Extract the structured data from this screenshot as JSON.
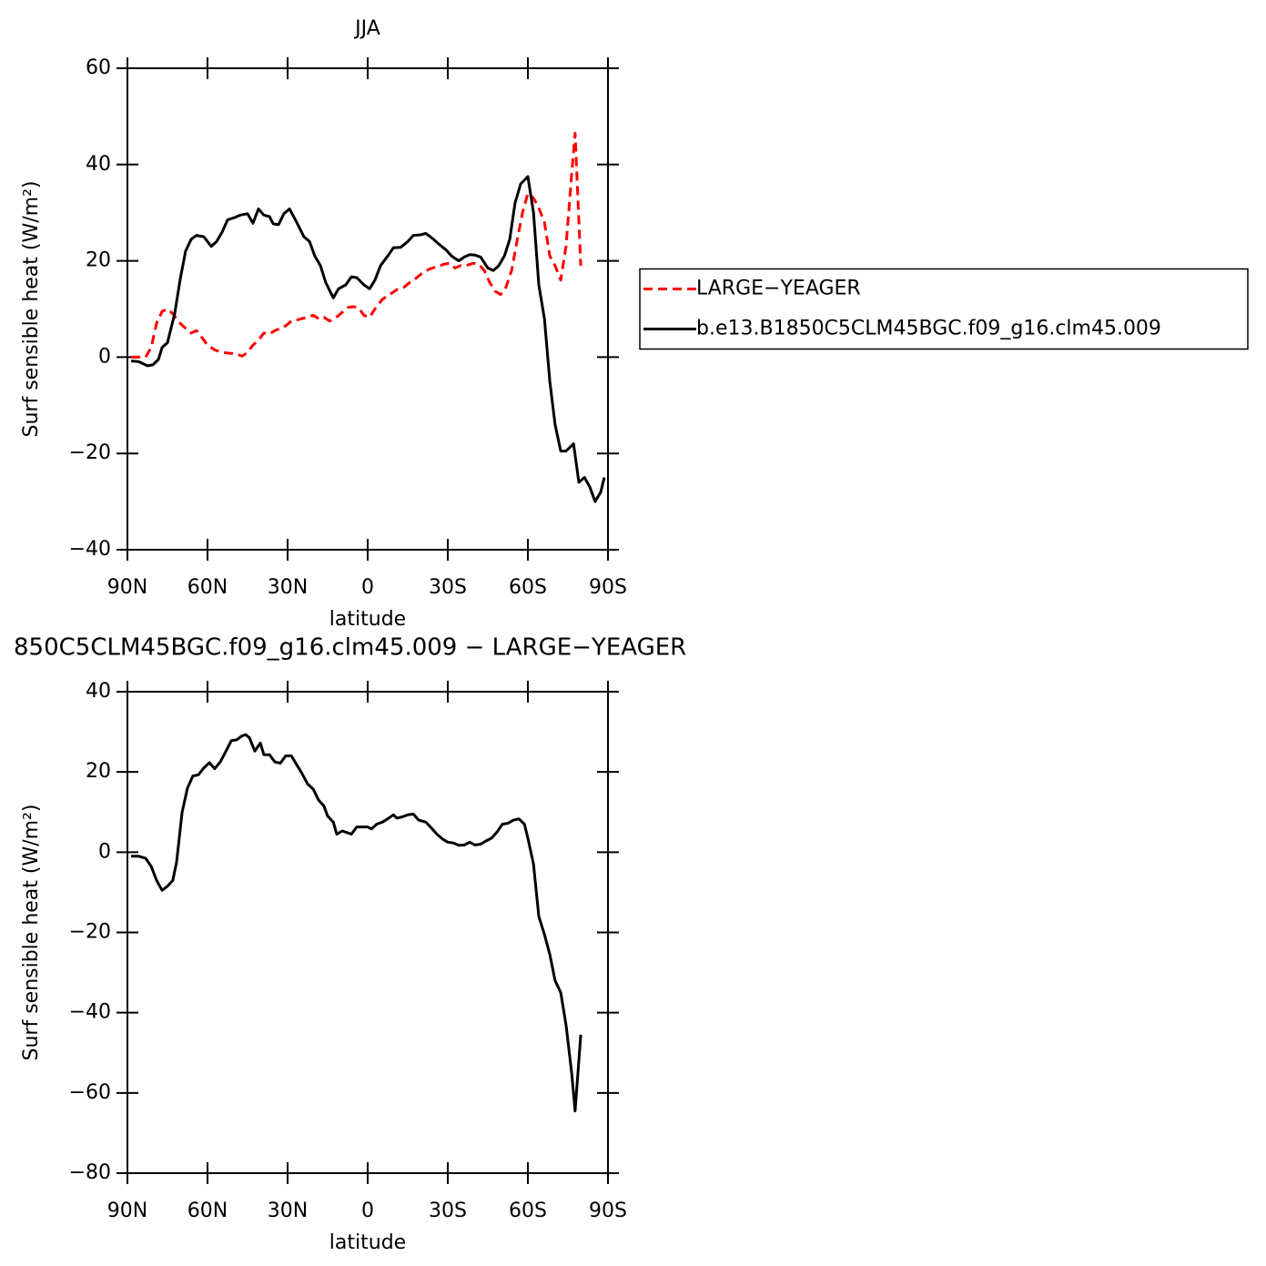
{
  "chart_data": [
    {
      "type": "line",
      "title": "JJA",
      "xlabel": "latitude",
      "ylabel": "Surf sensible heat (W/m²)",
      "xlim": [
        90,
        -90
      ],
      "xticks": [
        {
          "value": 90,
          "label": "90N"
        },
        {
          "value": 60,
          "label": "60N"
        },
        {
          "value": 30,
          "label": "30N"
        },
        0,
        {
          "value": -30,
          "label": "30S"
        },
        {
          "value": -60,
          "label": "60S"
        },
        {
          "value": -90,
          "label": "90S"
        }
      ],
      "ylim": [
        -40,
        60
      ],
      "yticks": [
        {
          "value": -40,
          "label": "−40"
        },
        {
          "value": -20,
          "label": "−20"
        },
        0,
        20,
        40,
        60
      ],
      "legend": "right",
      "series": [
        {
          "name": "LARGE−YEAGER",
          "color": "#ff0000",
          "dash": true,
          "x": [
            88.6,
            85.9,
            83.2,
            81.1,
            79.1,
            77.0,
            75.0,
            73.0,
            70.2,
            68.2,
            66.1,
            64.1,
            62.0,
            60.0,
            57.3,
            54.5,
            51.8,
            49.8,
            47.0,
            45.0,
            43.0,
            40.9,
            38.9,
            36.8,
            34.8,
            32.7,
            30.7,
            28.6,
            25.9,
            23.2,
            20.4,
            18.4,
            16.4,
            14.3,
            12.3,
            10.2,
            7.5,
            5.4,
            3.4,
            1.4,
            -0.7,
            -2.7,
            -5.5,
            -8.2,
            -10.9,
            -13.6,
            -15.7,
            -18.4,
            -20.5,
            -23.2,
            -25.9,
            -28.6,
            -30.7,
            -32.7,
            -34.8,
            -36.8,
            -39.6,
            -41.6,
            -43.7,
            -45.7,
            -47.7,
            -49.8,
            -51.8,
            -53.9,
            -55.9,
            -58.0,
            -60.0,
            -62.1,
            -64.1,
            -66.2,
            -68.2,
            -70.2,
            -72.3,
            -74.3,
            -76.4,
            -77.7,
            -79.8
          ],
          "values": [
            0,
            0,
            0,
            2,
            7,
            9.5,
            10,
            9,
            7,
            6,
            5,
            5.5,
            4,
            2.5,
            1.5,
            1,
            0.8,
            0.8,
            0.2,
            1,
            2.5,
            3.5,
            5,
            4.8,
            5.5,
            6,
            6.5,
            7.5,
            7.8,
            8.2,
            8.7,
            8,
            8.3,
            7.5,
            8,
            9,
            10.3,
            10.5,
            10.2,
            8.7,
            8.3,
            10,
            12,
            13,
            14,
            14.5,
            15.5,
            16.5,
            17.5,
            18.3,
            18.8,
            19.3,
            19.5,
            18.5,
            19,
            19,
            19.5,
            19.3,
            18,
            15.5,
            13.7,
            13,
            14.5,
            18,
            24,
            30,
            34,
            33,
            31,
            28,
            21,
            19,
            16,
            23,
            38,
            46.5,
            19
          ]
        },
        {
          "name": "b.e13.B1850C5CLM45BGC.f09_g16.clm45.009",
          "color": "#000000",
          "dash": false,
          "x": [
            88.6,
            85.9,
            82.5,
            80.5,
            78.4,
            77.0,
            75.0,
            72.3,
            70.2,
            68.2,
            66.1,
            64.1,
            61.4,
            58.6,
            56.6,
            54.5,
            52.5,
            49.8,
            47.7,
            45.0,
            43.0,
            40.9,
            38.9,
            36.8,
            35.4,
            33.4,
            31.4,
            29.3,
            26.6,
            23.9,
            21.8,
            19.8,
            17.7,
            15.7,
            12.9,
            10.9,
            8.2,
            6.1,
            4.1,
            1.4,
            -0.7,
            -2.7,
            -4.8,
            -7.5,
            -9.6,
            -12.3,
            -15.0,
            -17.1,
            -19.8,
            -21.8,
            -24.6,
            -26.6,
            -29.3,
            -31.4,
            -34.1,
            -36.2,
            -38.2,
            -40.2,
            -42.3,
            -45.0,
            -47.1,
            -49.1,
            -51.2,
            -53.2,
            -55.2,
            -57.3,
            -60.0,
            -62.1,
            -64.1,
            -66.2,
            -68.2,
            -70.2,
            -72.3,
            -74.3,
            -77.1,
            -79.1,
            -81.2,
            -83.2,
            -85.2,
            -87.3,
            -88.6
          ],
          "values": [
            -0.8,
            -0.9,
            -1.8,
            -1.6,
            -0.5,
            2,
            3,
            9,
            16.3,
            22,
            24.5,
            25.3,
            25,
            23,
            24,
            26,
            28.5,
            29,
            29.5,
            29.8,
            27.8,
            30.8,
            29.5,
            29.2,
            27.7,
            27.5,
            29.8,
            30.8,
            28,
            25,
            24,
            21,
            19,
            15.5,
            12.3,
            14.2,
            15,
            16.7,
            16.5,
            15,
            14.2,
            16,
            19,
            21,
            22.7,
            22.8,
            24,
            25.3,
            25.4,
            25.7,
            24.5,
            23.5,
            22.3,
            21,
            20,
            20.8,
            21.3,
            21.2,
            20.8,
            18.5,
            18,
            19,
            21,
            24.5,
            32,
            36,
            37.5,
            30,
            15,
            8,
            -5,
            -14,
            -19.5,
            -19.5,
            -18,
            -26,
            -25,
            -27,
            -30,
            -28,
            -25
          ]
        }
      ]
    },
    {
      "type": "line",
      "title": "850C5CLM45BGC.f09_g16.clm45.009 − LARGE−YEAGER",
      "xlabel": "latitude",
      "ylabel": "Surf sensible heat (W/m²)",
      "xlim": [
        90,
        -90
      ],
      "xticks": [
        {
          "value": 90,
          "label": "90N"
        },
        {
          "value": 60,
          "label": "60N"
        },
        {
          "value": 30,
          "label": "30N"
        },
        0,
        {
          "value": -30,
          "label": "30S"
        },
        {
          "value": -60,
          "label": "60S"
        },
        {
          "value": -90,
          "label": "90S"
        }
      ],
      "ylim": [
        -80,
        40
      ],
      "yticks": [
        {
          "value": -80,
          "label": "−80"
        },
        {
          "value": -60,
          "label": "−60"
        },
        {
          "value": -40,
          "label": "−40"
        },
        {
          "value": -20,
          "label": "−20"
        },
        0,
        20,
        40
      ],
      "series": [
        {
          "color": "#000000",
          "dash": false,
          "x": [
            88.6,
            85.9,
            83.2,
            81.1,
            79.1,
            77.0,
            75.0,
            73.0,
            71.6,
            69.5,
            67.5,
            65.5,
            63.4,
            61.4,
            59.3,
            57.3,
            55.2,
            53.2,
            51.1,
            49.1,
            47.0,
            45.7,
            44.3,
            42.3,
            40.2,
            38.9,
            36.8,
            34.8,
            32.7,
            30.7,
            28.6,
            26.6,
            24.5,
            22.5,
            20.4,
            18.4,
            16.4,
            15.0,
            12.9,
            11.6,
            9.5,
            8.2,
            6.1,
            4.1,
            2.0,
            0,
            -1.4,
            -3.4,
            -5.5,
            -7.5,
            -9.6,
            -10.9,
            -13.0,
            -15.0,
            -17.1,
            -19.1,
            -21.8,
            -23.9,
            -25.9,
            -28.0,
            -30.0,
            -32.1,
            -34.1,
            -36.2,
            -38.2,
            -40.2,
            -42.3,
            -44.3,
            -46.4,
            -48.4,
            -50.5,
            -52.5,
            -54.6,
            -56.6,
            -58.7,
            -60.0,
            -62.1,
            -64.1,
            -66.2,
            -68.2,
            -70.2,
            -72.3,
            -74.3,
            -76.4,
            -77.7,
            -79.8
          ],
          "values": [
            -1,
            -1,
            -1.5,
            -3.5,
            -7,
            -9.5,
            -8.5,
            -7,
            -2.5,
            10,
            16,
            19,
            19.3,
            21,
            22.3,
            20.8,
            22.5,
            25,
            27.8,
            28,
            29,
            29.3,
            28.5,
            25.2,
            27.2,
            24.3,
            24.3,
            22.5,
            22.2,
            24,
            24,
            21.8,
            19.5,
            17,
            15.7,
            13,
            11.5,
            9,
            7.5,
            4.5,
            5.3,
            5,
            4.5,
            6.3,
            6.3,
            6.3,
            5.8,
            7,
            7.5,
            8.3,
            9.3,
            8.5,
            8.8,
            9.3,
            9.5,
            8,
            7.5,
            6,
            4.5,
            3.3,
            2.5,
            2.3,
            1.7,
            1.8,
            2.5,
            1.8,
            2,
            2.8,
            3.5,
            5,
            7,
            7.2,
            8,
            8.3,
            7,
            3.5,
            -3,
            -16,
            -20.5,
            -25.5,
            -32,
            -35,
            -43,
            -55,
            -64.5,
            -45.5
          ]
        }
      ]
    }
  ]
}
